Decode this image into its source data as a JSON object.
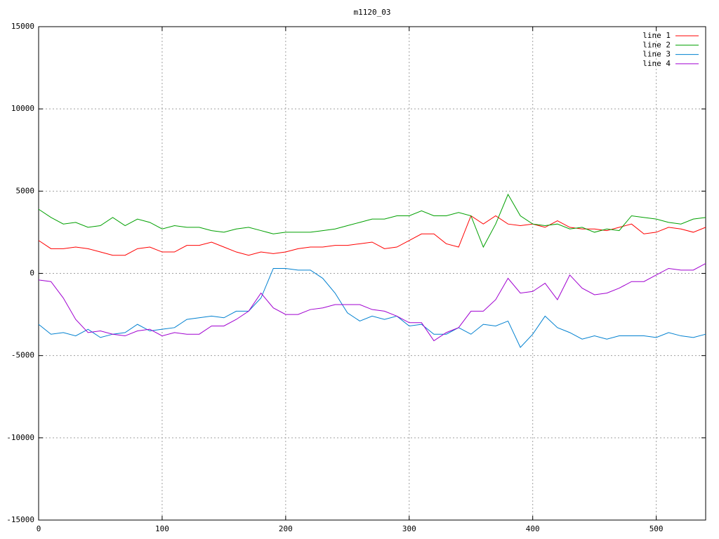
{
  "chart_data": {
    "type": "line",
    "title": "m1120_03",
    "x": [
      0,
      10,
      20,
      30,
      40,
      50,
      60,
      70,
      80,
      90,
      100,
      110,
      120,
      130,
      140,
      150,
      160,
      170,
      180,
      190,
      200,
      210,
      220,
      230,
      240,
      250,
      260,
      270,
      280,
      290,
      300,
      310,
      320,
      330,
      340,
      350,
      360,
      370,
      380,
      390,
      400,
      410,
      420,
      430,
      440,
      450,
      460,
      470,
      480,
      490,
      500,
      510,
      520,
      530,
      540
    ],
    "series": [
      {
        "name": "line 1",
        "color": "#ff0000",
        "values": [
          2000,
          1500,
          1500,
          1600,
          1500,
          1300,
          1100,
          1100,
          1500,
          1600,
          1300,
          1300,
          1700,
          1700,
          1900,
          1600,
          1300,
          1100,
          1300,
          1200,
          1300,
          1500,
          1600,
          1600,
          1700,
          1700,
          1800,
          1900,
          1500,
          1600,
          2000,
          2400,
          2400,
          1800,
          1600,
          3500,
          3000,
          3500,
          3000,
          2900,
          3000,
          2800,
          3200,
          2800,
          2700,
          2700,
          2600,
          2800,
          3000,
          2400,
          2500,
          2800,
          2700,
          2500,
          2800
        ]
      },
      {
        "name": "line 2",
        "color": "#00a000",
        "values": [
          3900,
          3400,
          3000,
          3100,
          2800,
          2900,
          3400,
          2900,
          3300,
          3100,
          2700,
          2900,
          2800,
          2800,
          2600,
          2500,
          2700,
          2800,
          2600,
          2400,
          2500,
          2500,
          2500,
          2600,
          2700,
          2900,
          3100,
          3300,
          3300,
          3500,
          3500,
          3800,
          3500,
          3500,
          3700,
          3500,
          1600,
          3000,
          4800,
          3500,
          3000,
          2900,
          3000,
          2700,
          2800,
          2500,
          2700,
          2600,
          3500,
          3400,
          3300,
          3100,
          3000,
          3300,
          3400
        ]
      },
      {
        "name": "line 3",
        "color": "#0080d0",
        "values": [
          -3100,
          -3700,
          -3600,
          -3800,
          -3400,
          -3900,
          -3700,
          -3600,
          -3100,
          -3500,
          -3400,
          -3300,
          -2800,
          -2700,
          -2600,
          -2700,
          -2300,
          -2300,
          -1500,
          300,
          300,
          200,
          200,
          -300,
          -1200,
          -2400,
          -2900,
          -2600,
          -2800,
          -2600,
          -3200,
          -3100,
          -3700,
          -3700,
          -3300,
          -3700,
          -3100,
          -3200,
          -2900,
          -4500,
          -3700,
          -2600,
          -3300,
          -3600,
          -4000,
          -3800,
          -4000,
          -3800,
          -3800,
          -3800,
          -3900,
          -3600,
          -3800,
          -3900,
          -3700
        ]
      },
      {
        "name": "line 4",
        "color": "#a000d0",
        "values": [
          -400,
          -500,
          -1500,
          -2800,
          -3600,
          -3500,
          -3700,
          -3800,
          -3500,
          -3400,
          -3800,
          -3600,
          -3700,
          -3700,
          -3200,
          -3200,
          -2800,
          -2300,
          -1200,
          -2100,
          -2500,
          -2500,
          -2200,
          -2100,
          -1900,
          -1900,
          -1900,
          -2200,
          -2300,
          -2600,
          -3000,
          -3000,
          -4100,
          -3600,
          -3300,
          -2300,
          -2300,
          -1600,
          -300,
          -1200,
          -1100,
          -600,
          -1600,
          -100,
          -900,
          -1300,
          -1200,
          -900,
          -500,
          -500,
          -100,
          300,
          200,
          200,
          600
        ]
      }
    ],
    "xlim": [
      0,
      540
    ],
    "ylim": [
      -15000,
      15000
    ],
    "xticks": [
      0,
      100,
      200,
      300,
      400,
      500
    ],
    "yticks": [
      -15000,
      -10000,
      -5000,
      0,
      5000,
      10000,
      15000
    ],
    "grid": true,
    "legend": "top-right"
  }
}
